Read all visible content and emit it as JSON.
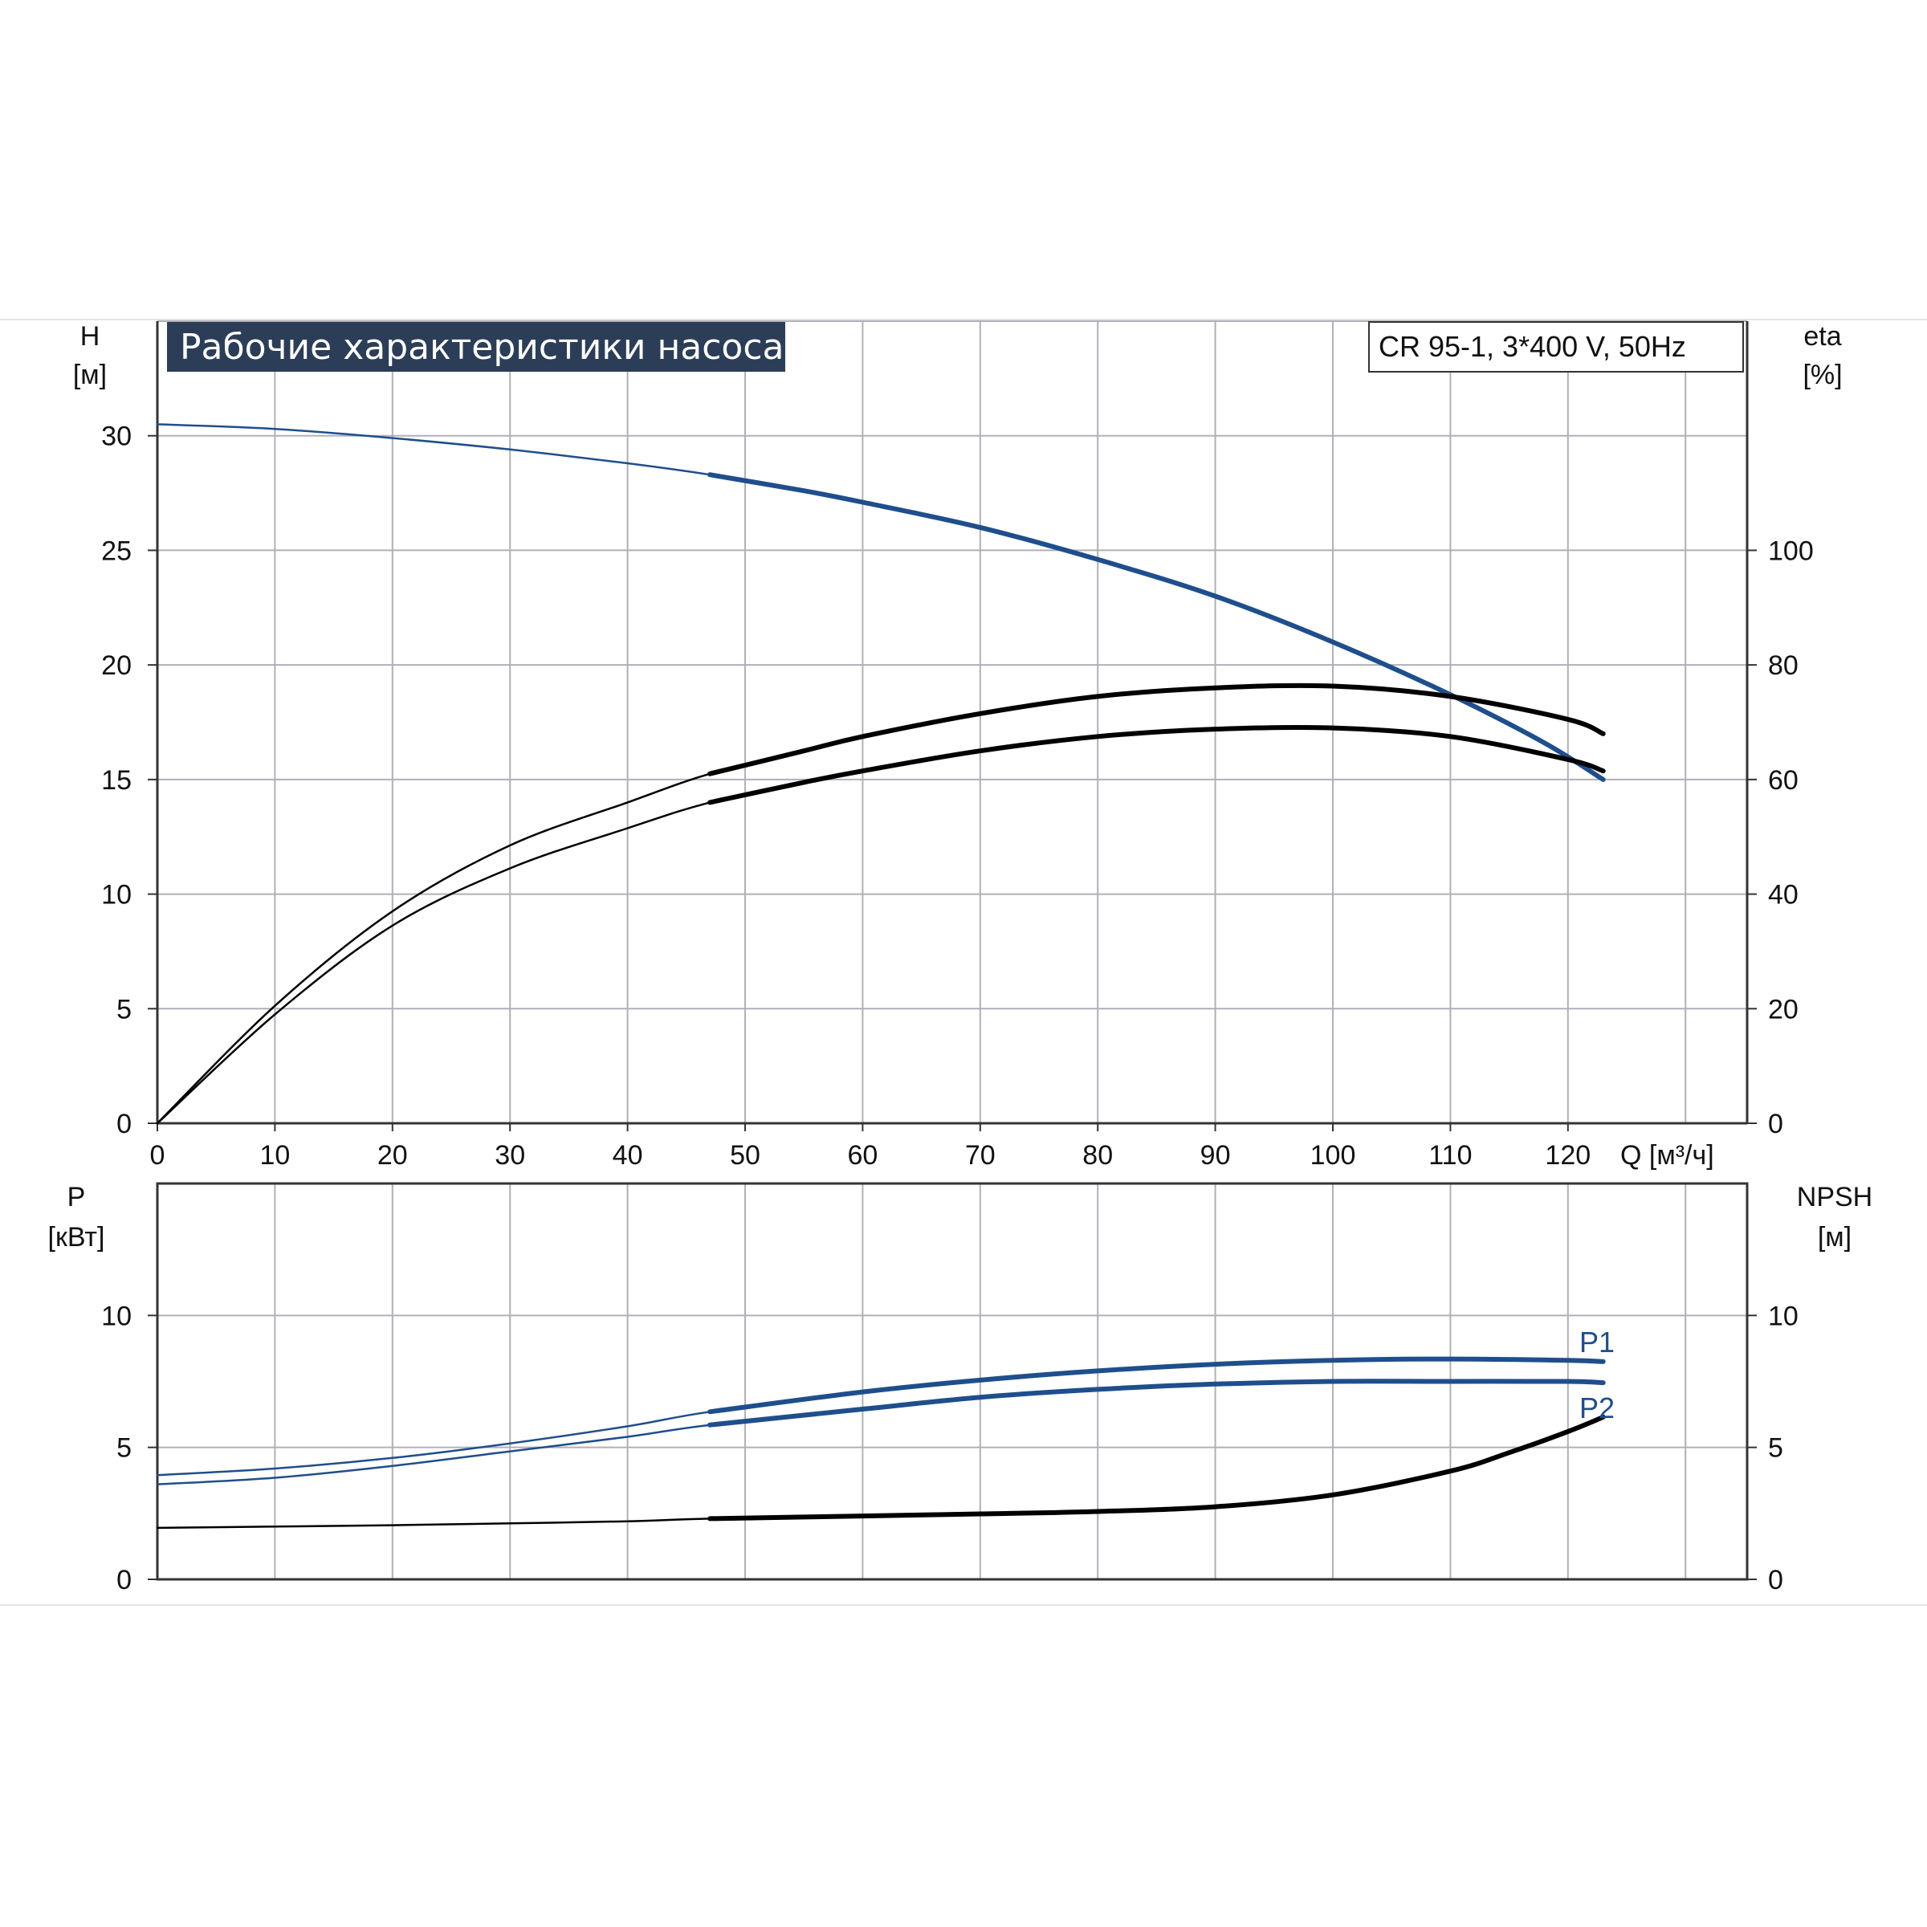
{
  "title": "Рабочие характеристики насоса",
  "model": "CR 95-1, 3*400 V, 50Hz",
  "colors": {
    "blue": "#1f4e8c",
    "black": "#000000",
    "grid": "#b0b0b8",
    "title_bg": "#2c3e57"
  },
  "chart_data": [
    {
      "type": "line",
      "x_label": "Q [м³/ч]",
      "x_ticks": [
        "0",
        "10",
        "20",
        "30",
        "40",
        "50",
        "60",
        "70",
        "80",
        "90",
        "100",
        "110",
        "120"
      ],
      "xlim": [
        0,
        135
      ],
      "y_label_left": [
        "H",
        "[м]"
      ],
      "y_ticks_left": [
        "0",
        "5",
        "10",
        "15",
        "20",
        "25",
        "30"
      ],
      "ylim_left": [
        0,
        35
      ],
      "y_label_right": [
        "eta",
        "[%]"
      ],
      "y_ticks_right": [
        "0",
        "20",
        "40",
        "60",
        "80",
        "100"
      ],
      "ylim_right": [
        0,
        140
      ],
      "grid": true,
      "series": [
        {
          "axis": "left",
          "color": "blue",
          "x": [
            0,
            10,
            20,
            30,
            40,
            47,
            55,
            60,
            70,
            80,
            90,
            100,
            110,
            118,
            123
          ],
          "values": [
            30.5,
            30.3,
            29.9,
            29.4,
            28.8,
            28.3,
            27.6,
            27.1,
            26.0,
            24.6,
            23.0,
            21.0,
            18.7,
            16.6,
            15.0
          ]
        },
        {
          "axis": "right",
          "color": "black",
          "x": [
            0,
            10,
            20,
            30,
            40,
            47,
            55,
            60,
            70,
            80,
            90,
            100,
            110,
            120,
            123
          ],
          "values": [
            0,
            20.5,
            37,
            48.5,
            56,
            61,
            65,
            67.5,
            71.5,
            74.5,
            76,
            76.3,
            74.5,
            70.5,
            68
          ]
        },
        {
          "axis": "right",
          "color": "black",
          "x": [
            0,
            10,
            20,
            30,
            40,
            47,
            55,
            60,
            70,
            80,
            90,
            100,
            110,
            120,
            123
          ],
          "values": [
            0,
            19,
            34.5,
            44.5,
            51.5,
            56,
            59.5,
            61.5,
            65,
            67.5,
            68.8,
            69,
            67.5,
            63.5,
            61.5
          ]
        }
      ]
    },
    {
      "type": "line",
      "x_ticks": [
        "0",
        "10",
        "20",
        "30",
        "40",
        "50",
        "60",
        "70",
        "80",
        "90",
        "100",
        "110",
        "120"
      ],
      "xlim": [
        0,
        135
      ],
      "y_label_left": [
        "P",
        "[кВт]"
      ],
      "y_ticks_left": [
        "0",
        "5",
        "10"
      ],
      "ylim_left": [
        0,
        15
      ],
      "y_label_right": [
        "NPSH",
        "[м]"
      ],
      "y_ticks_right": [
        "0",
        "5",
        "10"
      ],
      "ylim_right": [
        0,
        15
      ],
      "grid": true,
      "series": [
        {
          "name": "P1",
          "axis": "left",
          "color": "blue",
          "x": [
            0,
            10,
            20,
            30,
            40,
            47,
            60,
            70,
            80,
            90,
            100,
            110,
            120,
            123
          ],
          "values": [
            3.95,
            4.2,
            4.6,
            5.15,
            5.8,
            6.35,
            7.1,
            7.55,
            7.9,
            8.15,
            8.3,
            8.35,
            8.3,
            8.25
          ]
        },
        {
          "name": "P2",
          "axis": "left",
          "color": "blue",
          "x": [
            0,
            10,
            20,
            30,
            40,
            47,
            60,
            70,
            80,
            90,
            100,
            110,
            120,
            123
          ],
          "values": [
            3.6,
            3.85,
            4.3,
            4.85,
            5.4,
            5.85,
            6.45,
            6.9,
            7.2,
            7.4,
            7.5,
            7.5,
            7.5,
            7.45
          ]
        },
        {
          "axis": "right",
          "color": "black",
          "x": [
            0,
            10,
            20,
            30,
            40,
            47,
            60,
            70,
            80,
            90,
            100,
            110,
            115,
            120,
            123
          ],
          "values": [
            1.95,
            2.0,
            2.05,
            2.12,
            2.2,
            2.3,
            2.4,
            2.48,
            2.57,
            2.75,
            3.2,
            4.1,
            4.8,
            5.6,
            6.15
          ]
        }
      ]
    }
  ]
}
